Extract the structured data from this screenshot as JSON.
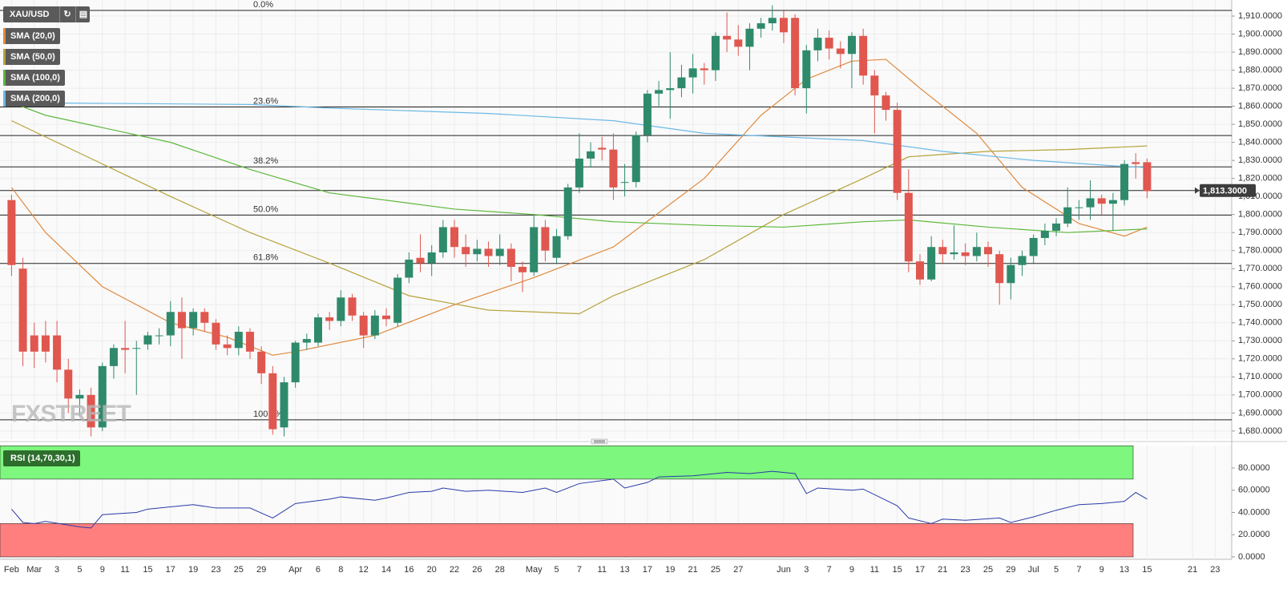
{
  "chart_data": [
    {
      "type": "candlestick",
      "symbol": "XAU/USD",
      "categories": [
        "Feb",
        null,
        "Mar",
        null,
        "3",
        null,
        "5",
        null,
        "9",
        null,
        "11",
        null,
        "15",
        null,
        "17",
        null,
        "19",
        null,
        "23",
        null,
        "25",
        null,
        "29",
        null,
        null,
        "Apr",
        null,
        "6",
        null,
        "8",
        null,
        "12",
        null,
        "14",
        null,
        "16",
        null,
        "20",
        null,
        "22",
        null,
        "26",
        null,
        "28",
        null,
        null,
        "May",
        null,
        "5",
        null,
        "7",
        null,
        "11",
        null,
        "13",
        null,
        "17",
        null,
        "19",
        null,
        "21",
        null,
        "25",
        null,
        "27",
        null,
        null,
        null,
        "Jun",
        null,
        "3",
        null,
        "7",
        null,
        "9",
        null,
        "11",
        null,
        "15",
        null,
        "17",
        null,
        "21",
        null,
        "23",
        null,
        "25",
        null,
        "29",
        null,
        "Jul",
        null,
        "5",
        null,
        "7",
        null,
        "9",
        null,
        "13",
        null,
        "15",
        null,
        null,
        null,
        "21",
        null,
        "23"
      ],
      "open": [
        1808,
        1770,
        1733,
        1733,
        1733,
        1714,
        1698,
        1700,
        1682,
        1716,
        1726,
        1726,
        1728,
        1733,
        1733,
        1746,
        1737,
        1746,
        1740,
        1728,
        1726,
        1735,
        1724,
        1712,
        1682,
        1707,
        1729,
        1729,
        1743,
        1741,
        1754,
        1744,
        1733,
        1744,
        1740,
        1765,
        1776,
        1773,
        1779,
        1793,
        1782,
        1778,
        1781,
        1777,
        1781,
        1771,
        1768,
        1793,
        1776,
        1788,
        1815,
        1831,
        1837,
        1836,
        1818,
        1818,
        1844,
        1867,
        1869,
        1870,
        1876,
        1881,
        1880,
        1899,
        1897,
        1893,
        1903,
        1906,
        1909,
        1909,
        1870,
        1891,
        1898,
        1892,
        1889,
        1899,
        1877,
        1866,
        1858,
        1812,
        1774,
        1764,
        1782,
        1778,
        1779,
        1777,
        1782,
        1778,
        1762,
        1772,
        1777,
        1787,
        1791,
        1795,
        1804,
        1804,
        1809,
        1806,
        1808,
        1829,
        1829,
        null,
        null,
        null,
        null,
        null,
        null
      ],
      "high": [
        1811,
        1776,
        1740,
        1741,
        1741,
        1720,
        1703,
        1704,
        1718,
        1728,
        1741,
        1730,
        1735,
        1737,
        1752,
        1754,
        1748,
        1748,
        1742,
        1733,
        1738,
        1737,
        1727,
        1716,
        1710,
        1730,
        1734,
        1745,
        1746,
        1758,
        1756,
        1746,
        1747,
        1748,
        1767,
        1779,
        1789,
        1783,
        1797,
        1797,
        1789,
        1786,
        1785,
        1789,
        1784,
        1774,
        1800,
        1797,
        1792,
        1817,
        1845,
        1840,
        1843,
        1845,
        1828,
        1846,
        1869,
        1874,
        1890,
        1883,
        1889,
        1884,
        1901,
        1912,
        1905,
        1906,
        1909,
        1916,
        1913,
        1911,
        1894,
        1903,
        1902,
        1896,
        1901,
        1903,
        1880,
        1868,
        1862,
        1825,
        1778,
        1788,
        1786,
        1794,
        1784,
        1790,
        1785,
        1780,
        1776,
        1780,
        1789,
        1795,
        1798,
        1815,
        1808,
        1819,
        1811,
        1812,
        1830,
        1834,
        1831,
        null,
        null,
        null,
        null,
        null,
        null
      ],
      "low": [
        1766,
        1716,
        1715,
        1718,
        1707,
        1690,
        1688,
        1677,
        1680,
        1709,
        1712,
        1700,
        1725,
        1728,
        1727,
        1720,
        1733,
        1735,
        1725,
        1722,
        1722,
        1720,
        1706,
        1678,
        1677,
        1704,
        1725,
        1727,
        1736,
        1738,
        1741,
        1726,
        1731,
        1738,
        1738,
        1762,
        1768,
        1766,
        1776,
        1776,
        1771,
        1774,
        1771,
        1772,
        1763,
        1757,
        1766,
        1774,
        1773,
        1786,
        1812,
        1826,
        1830,
        1808,
        1810,
        1815,
        1840,
        1860,
        1853,
        1865,
        1867,
        1872,
        1874,
        1890,
        1888,
        1880,
        1898,
        1902,
        1895,
        1866,
        1856,
        1885,
        1886,
        1881,
        1870,
        1872,
        1845,
        1852,
        1808,
        1768,
        1761,
        1763,
        1773,
        1775,
        1772,
        1774,
        1771,
        1750,
        1753,
        1766,
        1773,
        1783,
        1788,
        1793,
        1797,
        1797,
        1800,
        1791,
        1805,
        1820,
        1809,
        null,
        null,
        null,
        null,
        null,
        null
      ],
      "close": [
        1772,
        1724,
        1724,
        1724,
        1714,
        1698,
        1700,
        1682,
        1716,
        1726,
        1725,
        1726,
        1733,
        1733,
        1746,
        1737,
        1746,
        1740,
        1728,
        1726,
        1735,
        1724,
        1712,
        1681,
        1707,
        1729,
        1731,
        1743,
        1741,
        1754,
        1744,
        1733,
        1744,
        1742,
        1765,
        1775,
        1773,
        1779,
        1793,
        1782,
        1778,
        1781,
        1777,
        1781,
        1771,
        1768,
        1793,
        1780,
        1788,
        1815,
        1831,
        1835,
        1836,
        1815,
        1818,
        1844,
        1867,
        1869,
        1870,
        1876,
        1881,
        1880,
        1899,
        1897,
        1893,
        1903,
        1906,
        1909,
        1901,
        1870,
        1891,
        1898,
        1892,
        1889,
        1899,
        1877,
        1866,
        1858,
        1812,
        1774,
        1764,
        1782,
        1778,
        1779,
        1777,
        1782,
        1778,
        1762,
        1772,
        1777,
        1787,
        1791,
        1795,
        1804,
        1804,
        1809,
        1806,
        1808,
        1828,
        1828,
        1813,
        null,
        null,
        null,
        null,
        null,
        null
      ],
      "up_color": "#2f8a6c",
      "down_color": "#e0574f",
      "ylim": [
        1675.5,
        1918.9
      ],
      "yticks": [
        {
          "value": 1680,
          "label": "1,680.0000"
        },
        {
          "value": 1690,
          "label": "1,690.0000"
        },
        {
          "value": 1700,
          "label": "1,700.0000"
        },
        {
          "value": 1710,
          "label": "1,710.0000"
        },
        {
          "value": 1720,
          "label": "1,720.0000"
        },
        {
          "value": 1730,
          "label": "1,730.0000"
        },
        {
          "value": 1740,
          "label": "1,740.0000"
        },
        {
          "value": 1750,
          "label": "1,750.0000"
        },
        {
          "value": 1760,
          "label": "1,760.0000"
        },
        {
          "value": 1770,
          "label": "1,770.0000"
        },
        {
          "value": 1780,
          "label": "1,780.0000"
        },
        {
          "value": 1790,
          "label": "1,790.0000"
        },
        {
          "value": 1800,
          "label": "1,800.0000"
        },
        {
          "value": 1810,
          "label": "1,810.0000"
        },
        {
          "value": 1820,
          "label": "1,820.0000"
        },
        {
          "value": 1830,
          "label": "1,830.0000"
        },
        {
          "value": 1840,
          "label": "1,840.0000"
        },
        {
          "value": 1850,
          "label": "1,850.0000"
        },
        {
          "value": 1860,
          "label": "1,860.0000"
        },
        {
          "value": 1870,
          "label": "1,870.0000"
        },
        {
          "value": 1880,
          "label": "1,880.0000"
        },
        {
          "value": 1890,
          "label": "1,890.0000"
        },
        {
          "value": 1900,
          "label": "1,900.0000"
        },
        {
          "value": 1910,
          "label": "1,910.0000"
        }
      ],
      "grid": true,
      "series": [
        {
          "name": "SMA (20,0)",
          "color": "#e0893c",
          "x": [
            0,
            3,
            8,
            14,
            19,
            23,
            25,
            32,
            39,
            46,
            53,
            61,
            66,
            70,
            74,
            77,
            80,
            85,
            89,
            94,
            98,
            100
          ],
          "values": [
            1815,
            1790,
            1760,
            1740,
            1732,
            1722,
            1724,
            1733,
            1750,
            1765,
            1782,
            1820,
            1855,
            1875,
            1885,
            1886,
            1870,
            1845,
            1815,
            1795,
            1788,
            1793
          ]
        },
        {
          "name": "SMA (50,0)",
          "color": "#b5a33c",
          "x": [
            0,
            4,
            14,
            21,
            28,
            35,
            42,
            50,
            53,
            61,
            68,
            75,
            79,
            86,
            93,
            100
          ],
          "values": [
            1852,
            1840,
            1810,
            1790,
            1773,
            1755,
            1747,
            1745,
            1755,
            1775,
            1800,
            1820,
            1832,
            1835,
            1836,
            1838
          ]
        },
        {
          "name": "SMA (100,0)",
          "color": "#5cb83a",
          "x": [
            0,
            3,
            14,
            21,
            28,
            39,
            46,
            53,
            61,
            68,
            75,
            79,
            86,
            93,
            100
          ],
          "values": [
            1862,
            1855,
            1840,
            1825,
            1812,
            1803,
            1800,
            1796,
            1794,
            1793,
            1796,
            1797,
            1793,
            1790,
            1792
          ]
        },
        {
          "name": "SMA (200,0)",
          "color": "#6cb9e6",
          "x": [
            0,
            21,
            28,
            42,
            53,
            61,
            68,
            75,
            82,
            90,
            97,
            100
          ],
          "values": [
            1862,
            1861,
            1859,
            1856,
            1852,
            1845,
            1843,
            1841,
            1835,
            1830,
            1827,
            1826
          ]
        }
      ],
      "fibonacci": [
        {
          "label": "0.0%",
          "value": 1913.1
        },
        {
          "label": "23.6%",
          "value": 1859.6
        },
        {
          "label": "38.2%",
          "value": 1826.4
        },
        {
          "label": "50.0%",
          "value": 1799.7
        },
        {
          "label": "61.8%",
          "value": 1772.9
        },
        {
          "label": "100.0%",
          "value": 1686.2
        }
      ],
      "hlines": [
        1843.8
      ],
      "last_price": {
        "value": 1813.3,
        "label": "1,813.3000"
      },
      "watermark": "FXSTREET"
    },
    {
      "type": "line",
      "title": "RSI (14,70,30,1)",
      "color": "#2a3aa8",
      "x": [
        0,
        1,
        2,
        3,
        6,
        7,
        8,
        11,
        12,
        14,
        16,
        18,
        21,
        23,
        25,
        28,
        29,
        32,
        33,
        35,
        37,
        38,
        40,
        42,
        45,
        47,
        48,
        50,
        53,
        54,
        56,
        57,
        60,
        63,
        65,
        67,
        69,
        70,
        71,
        74,
        75,
        77,
        78,
        79,
        81,
        82,
        84,
        87,
        88,
        90,
        92,
        94,
        96,
        98,
        99,
        100
      ],
      "values": [
        43,
        31,
        30,
        32,
        27,
        26,
        38,
        40,
        43,
        45,
        47,
        44,
        44,
        35,
        48,
        52,
        54,
        51,
        53,
        58,
        59,
        62,
        59,
        60,
        58,
        62,
        58,
        66,
        70,
        62,
        67,
        72,
        73,
        76,
        75,
        77,
        75,
        57,
        62,
        60,
        61,
        51,
        46,
        35,
        30,
        34,
        33,
        35,
        31,
        36,
        42,
        47,
        48,
        50,
        58,
        52
      ],
      "ylim": [
        -2.2,
        100.2
      ],
      "yticks": [
        {
          "value": 0,
          "label": "0.0000"
        },
        {
          "value": 20,
          "label": "20.0000"
        },
        {
          "value": 40,
          "label": "40.0000"
        },
        {
          "value": 60,
          "label": "60.0000"
        },
        {
          "value": 80,
          "label": "80.0000"
        }
      ],
      "bands": [
        {
          "from": 70,
          "to": 100,
          "color": "#7df77d"
        },
        {
          "from": 0,
          "to": 30,
          "color": "#ff7f7f"
        }
      ]
    }
  ]
}
